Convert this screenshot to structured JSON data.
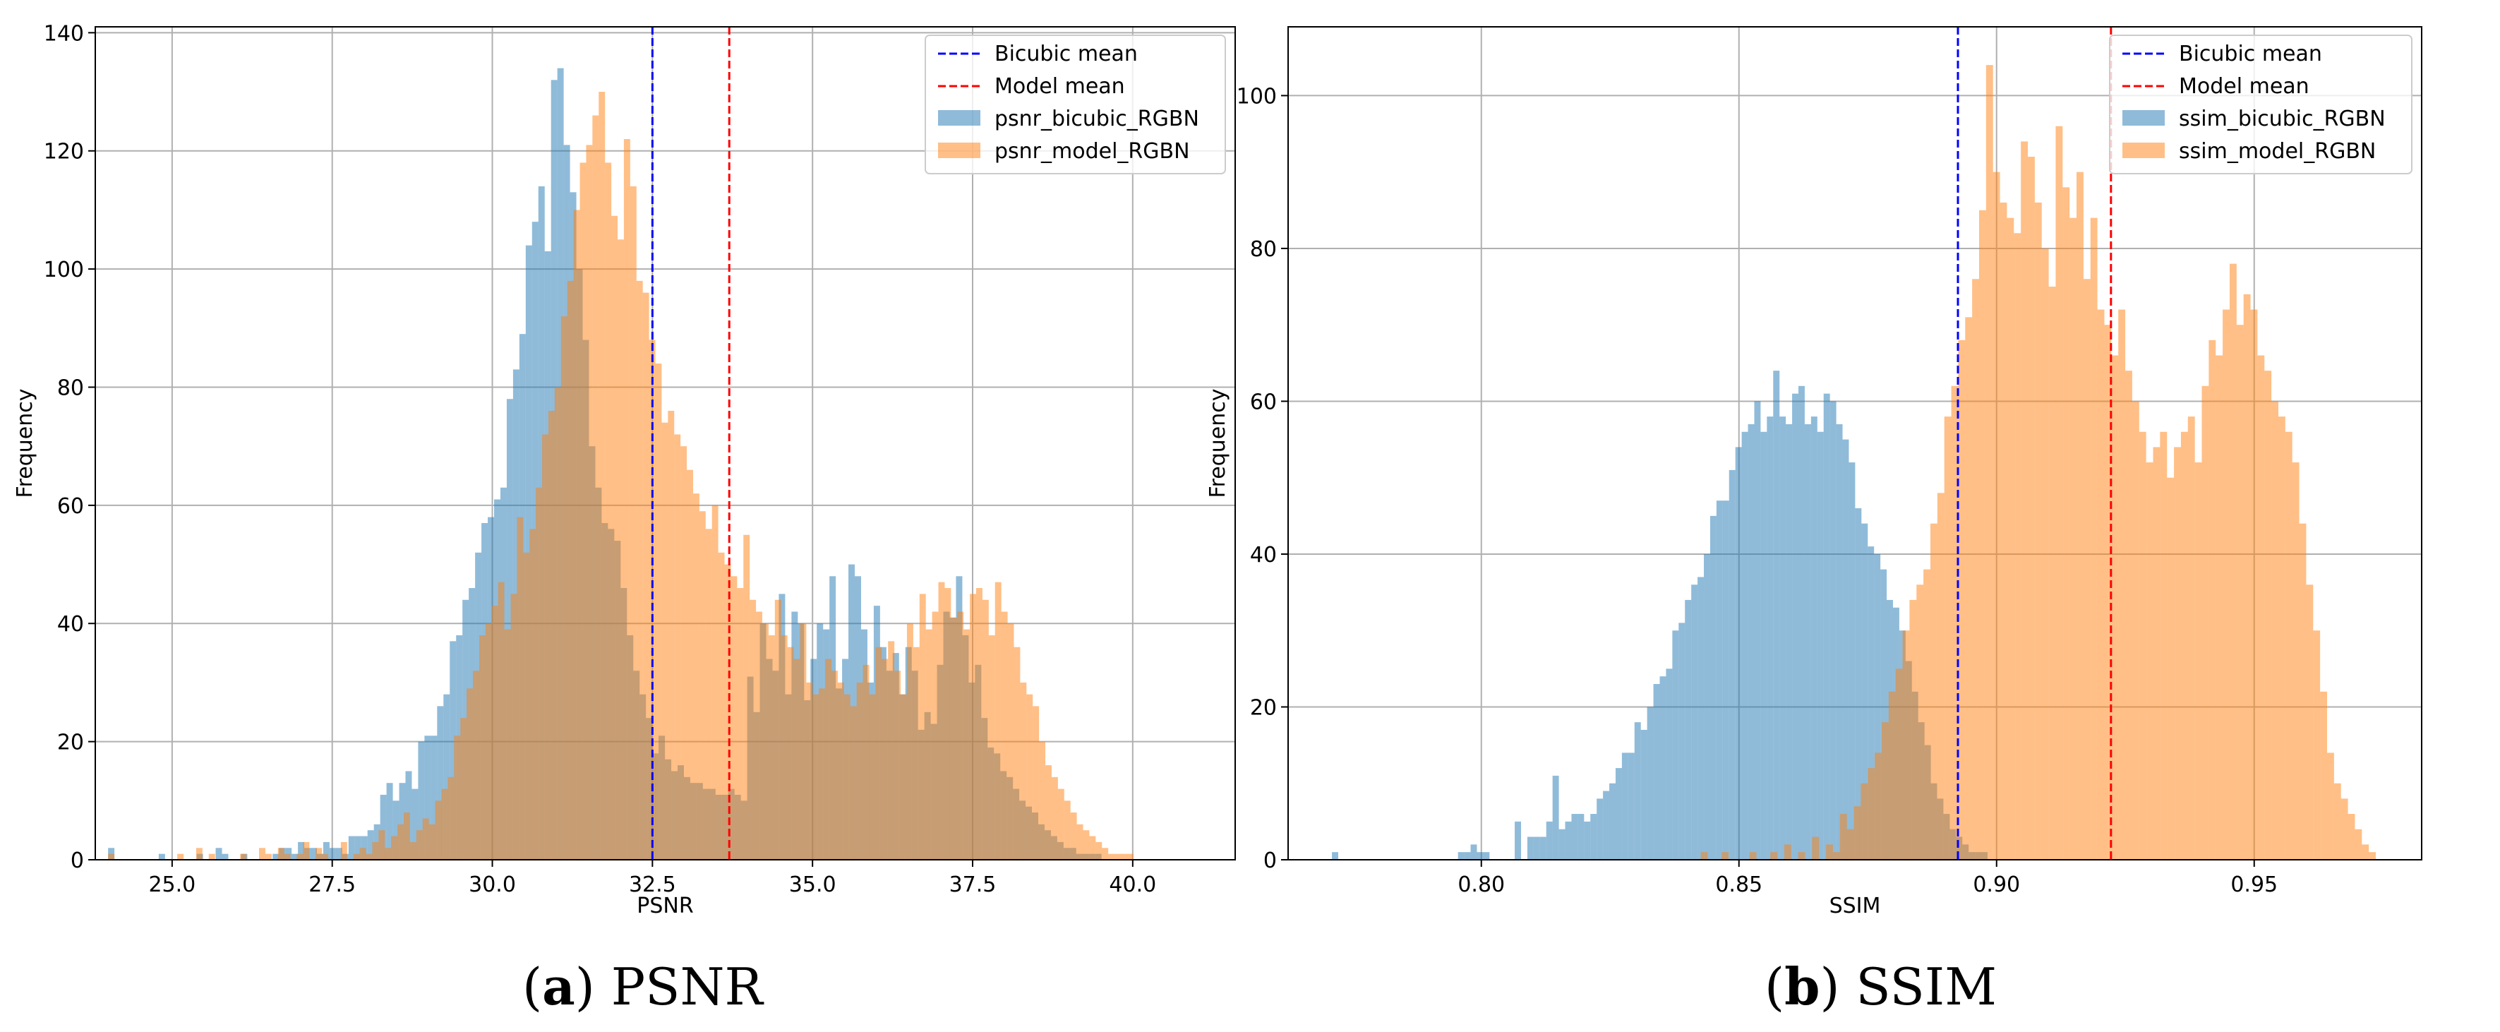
{
  "captions": [
    {
      "open": "(",
      "letter": "a",
      "close": ")",
      "text": " PSNR"
    },
    {
      "open": "(",
      "letter": "b",
      "close": ")",
      "text": " SSIM"
    }
  ],
  "colors": {
    "bicubic_fill": "#1f77b4",
    "model_fill": "#ff7f0e",
    "bicubic_mean_line": "#0000ff",
    "model_mean_line": "#ff0000",
    "grid": "#b0b0b0"
  },
  "chart_data": [
    {
      "id": "psnr",
      "type": "histogram",
      "title": "",
      "xlabel": "PSNR",
      "ylabel": "Frequency",
      "xlim": [
        23.8,
        41.6
      ],
      "ylim": [
        0,
        141
      ],
      "xticks": [
        25.0,
        27.5,
        30.0,
        32.5,
        35.0,
        37.5,
        40.0
      ],
      "xtick_labels": [
        "25.0",
        "27.5",
        "30.0",
        "32.5",
        "35.0",
        "37.5",
        "40.0"
      ],
      "yticks": [
        0,
        20,
        40,
        60,
        80,
        100,
        120,
        140
      ],
      "ytick_labels": [
        "0",
        "20",
        "40",
        "60",
        "80",
        "100",
        "120",
        "140"
      ],
      "grid": true,
      "legend_position": "top-right",
      "bins": [
        24.0,
        40.6
      ],
      "series": [
        {
          "name": "psnr_bicubic_RGBN",
          "values": [
            2,
            0,
            0,
            0,
            0,
            0,
            0,
            0,
            1,
            0,
            0,
            0,
            0,
            0,
            1,
            0,
            0,
            2,
            1,
            0,
            0,
            1,
            0,
            0,
            0,
            0,
            1,
            2,
            2,
            1,
            3,
            2,
            2,
            1,
            3,
            2,
            2,
            1,
            4,
            4,
            4,
            5,
            6,
            11,
            13,
            10,
            13,
            15,
            12,
            20,
            21,
            21,
            26,
            28,
            37,
            38,
            44,
            46,
            52,
            57,
            58,
            61,
            63,
            78,
            83,
            89,
            104,
            108,
            114,
            103,
            132,
            134,
            121,
            113,
            100,
            88,
            70,
            63,
            57,
            56,
            54,
            46,
            38,
            32,
            28,
            24,
            18,
            21,
            17,
            15,
            16,
            14,
            13,
            13,
            12,
            12,
            11,
            11,
            12,
            11,
            10,
            31,
            25,
            40,
            34,
            32,
            45,
            28,
            42,
            40,
            27,
            34,
            40,
            39,
            48,
            29,
            34,
            50,
            48,
            39,
            30,
            43,
            36,
            32,
            35,
            28,
            36,
            32,
            22,
            25,
            23,
            33,
            42,
            41,
            48,
            38,
            30,
            33,
            24,
            19,
            18,
            15,
            14,
            12,
            10,
            9,
            8,
            6,
            5,
            4,
            3,
            2,
            2,
            1,
            1,
            1,
            1,
            0,
            0,
            0,
            0,
            0,
            0,
            0,
            0,
            0,
            0,
            0
          ]
        },
        {
          "name": "psnr_model_RGBN",
          "values": [
            1,
            0,
            0,
            0,
            0,
            0,
            0,
            0,
            0,
            0,
            0,
            1,
            0,
            0,
            2,
            0,
            1,
            0,
            0,
            0,
            0,
            1,
            0,
            0,
            2,
            1,
            0,
            2,
            1,
            0,
            1,
            3,
            0,
            2,
            1,
            0,
            0,
            3,
            0,
            1,
            2,
            1,
            3,
            5,
            2,
            4,
            6,
            8,
            3,
            5,
            7,
            6,
            10,
            12,
            14,
            21,
            24,
            29,
            32,
            38,
            40,
            43,
            47,
            39,
            45,
            58,
            52,
            56,
            63,
            72,
            76,
            80,
            92,
            98,
            110,
            118,
            121,
            126,
            130,
            118,
            109,
            105,
            122,
            114,
            98,
            96,
            88,
            84,
            74,
            76,
            72,
            70,
            66,
            62,
            59,
            56,
            60,
            52,
            50,
            48,
            46,
            55,
            44,
            42,
            40,
            38,
            44,
            38,
            36,
            34,
            40,
            30,
            28,
            29,
            34,
            32,
            30,
            28,
            26,
            30,
            33,
            28,
            36,
            34,
            37,
            32,
            28,
            40,
            36,
            45,
            39,
            42,
            47,
            46,
            41,
            42,
            39,
            45,
            46,
            44,
            38,
            47,
            42,
            40,
            36,
            30,
            28,
            26,
            20,
            16,
            14,
            12,
            10,
            8,
            6,
            5,
            4,
            3,
            2,
            1,
            1,
            1,
            1,
            0,
            0,
            0,
            0,
            0,
            0
          ]
        }
      ],
      "means": [
        {
          "name": "Bicubic mean",
          "x": 32.5,
          "style": "dashed"
        },
        {
          "name": "Model mean",
          "x": 33.7,
          "style": "dashed"
        }
      ]
    },
    {
      "id": "ssim",
      "type": "histogram",
      "title": "",
      "xlabel": "SSIM",
      "ylabel": "Frequency",
      "xlim": [
        0.7625,
        0.9825
      ],
      "ylim": [
        0,
        109
      ],
      "xticks": [
        0.8,
        0.85,
        0.9,
        0.95
      ],
      "xtick_labels": [
        "0.80",
        "0.85",
        "0.90",
        "0.95"
      ],
      "yticks": [
        0,
        20,
        40,
        60,
        80,
        100
      ],
      "ytick_labels": [
        "0",
        "20",
        "40",
        "60",
        "80",
        "100"
      ],
      "grid": true,
      "legend_position": "top-right",
      "bins": [
        0.771,
        0.979
      ],
      "series": [
        {
          "name": "ssim_bicubic_RGBN",
          "values": [
            1,
            0,
            0,
            0,
            0,
            0,
            0,
            0,
            0,
            0,
            0,
            0,
            0,
            0,
            0,
            0,
            0,
            0,
            0,
            0,
            1,
            1,
            2,
            1,
            1,
            0,
            0,
            0,
            0,
            5,
            0,
            3,
            3,
            3,
            5,
            11,
            4,
            5,
            6,
            6,
            5,
            6,
            8,
            9,
            10,
            12,
            14,
            14,
            18,
            17,
            20,
            23,
            24,
            25,
            30,
            31,
            34,
            36,
            37,
            40,
            45,
            47,
            47,
            51,
            54,
            56,
            57,
            60,
            56,
            58,
            64,
            58,
            57,
            61,
            62,
            57,
            58,
            56,
            61,
            60,
            57,
            55,
            52,
            46,
            44,
            41,
            40,
            38,
            34,
            33,
            30,
            26,
            22,
            18,
            15,
            10,
            8,
            6,
            4,
            3,
            2,
            1,
            1,
            1,
            0,
            0,
            0,
            0,
            0,
            0,
            0,
            0,
            0,
            0,
            0,
            0,
            0,
            0,
            0,
            0,
            0,
            0,
            0,
            0,
            0,
            0,
            0,
            0,
            0,
            0,
            0,
            0,
            0,
            0,
            0,
            0,
            0,
            0,
            0,
            0,
            0,
            0,
            0,
            0,
            0,
            0,
            0,
            0,
            0,
            0,
            0,
            0,
            0,
            0,
            0,
            0,
            0,
            0,
            0,
            0,
            0,
            0,
            0,
            0,
            0,
            0,
            0,
            0,
            0,
            0
          ]
        },
        {
          "name": "ssim_model_RGBN",
          "values": [
            0,
            0,
            0,
            0,
            0,
            0,
            0,
            0,
            0,
            0,
            0,
            0,
            0,
            0,
            0,
            0,
            0,
            0,
            0,
            0,
            0,
            0,
            0,
            0,
            0,
            0,
            0,
            0,
            0,
            0,
            0,
            0,
            0,
            0,
            0,
            0,
            0,
            0,
            0,
            0,
            0,
            0,
            0,
            0,
            0,
            0,
            0,
            0,
            0,
            0,
            0,
            0,
            0,
            1,
            0,
            0,
            1,
            0,
            0,
            0,
            1,
            0,
            0,
            1,
            0,
            2,
            0,
            1,
            0,
            3,
            0,
            2,
            1,
            6,
            4,
            7,
            10,
            12,
            14,
            18,
            22,
            25,
            30,
            34,
            36,
            38,
            44,
            48,
            58,
            62,
            68,
            71,
            76,
            85,
            104,
            90,
            86,
            84,
            82,
            94,
            92,
            86,
            80,
            75,
            96,
            88,
            84,
            90,
            76,
            84,
            72,
            70,
            66,
            72,
            64,
            60,
            56,
            52,
            54,
            56,
            50,
            54,
            56,
            58,
            52,
            62,
            68,
            66,
            72,
            78,
            70,
            74,
            72,
            66,
            64,
            60,
            58,
            56,
            52,
            44,
            36,
            30,
            22,
            14,
            10,
            8,
            6,
            4,
            2,
            1,
            0,
            0,
            0,
            0
          ]
        }
      ],
      "means": [
        {
          "name": "Bicubic mean",
          "x": 0.8925,
          "style": "dashed"
        },
        {
          "name": "Model mean",
          "x": 0.9222,
          "style": "dashed"
        }
      ]
    }
  ]
}
